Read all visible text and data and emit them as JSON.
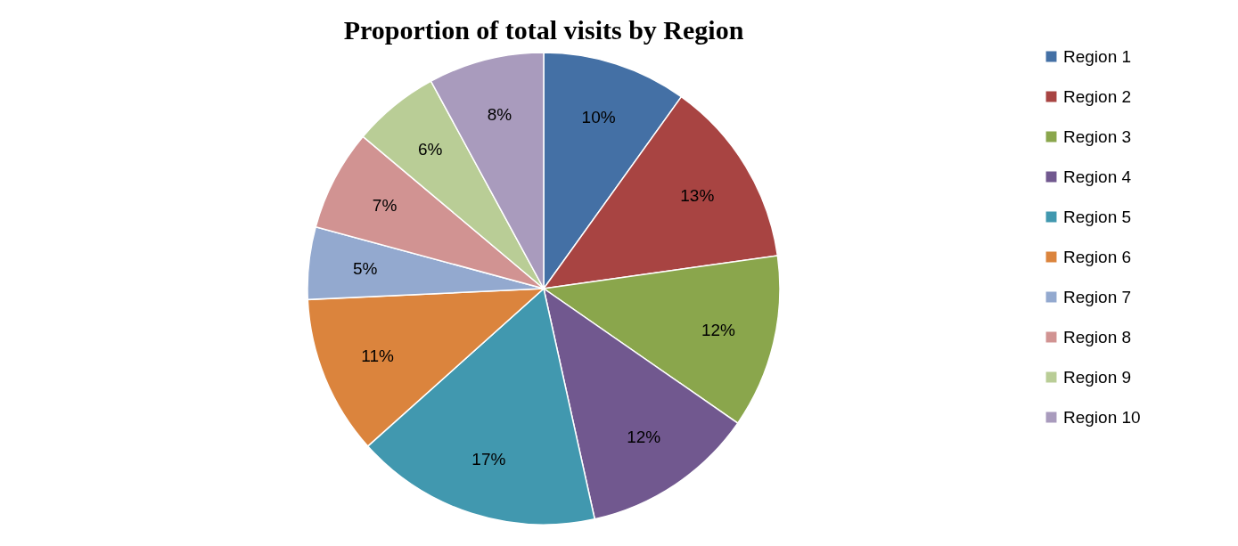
{
  "chart_data": {
    "type": "pie",
    "title": "Proportion  of total visits by Region",
    "categories": [
      "Region 1",
      "Region 2",
      "Region 3",
      "Region 4",
      "Region 5",
      "Region 6",
      "Region 7",
      "Region 8",
      "Region 9",
      "Region 10"
    ],
    "values": [
      10,
      13,
      12,
      12,
      17,
      11,
      5,
      7,
      6,
      8
    ],
    "value_labels": [
      "10%",
      "13%",
      "12%",
      "12%",
      "17%",
      "11%",
      "5%",
      "7%",
      "6%",
      "8%"
    ],
    "colors": [
      "#4470a5",
      "#a84442",
      "#8aa64c",
      "#71588f",
      "#4198af",
      "#db843d",
      "#93a9cf",
      "#d19392",
      "#b9cd96",
      "#a99bbd"
    ],
    "legend": "right"
  }
}
